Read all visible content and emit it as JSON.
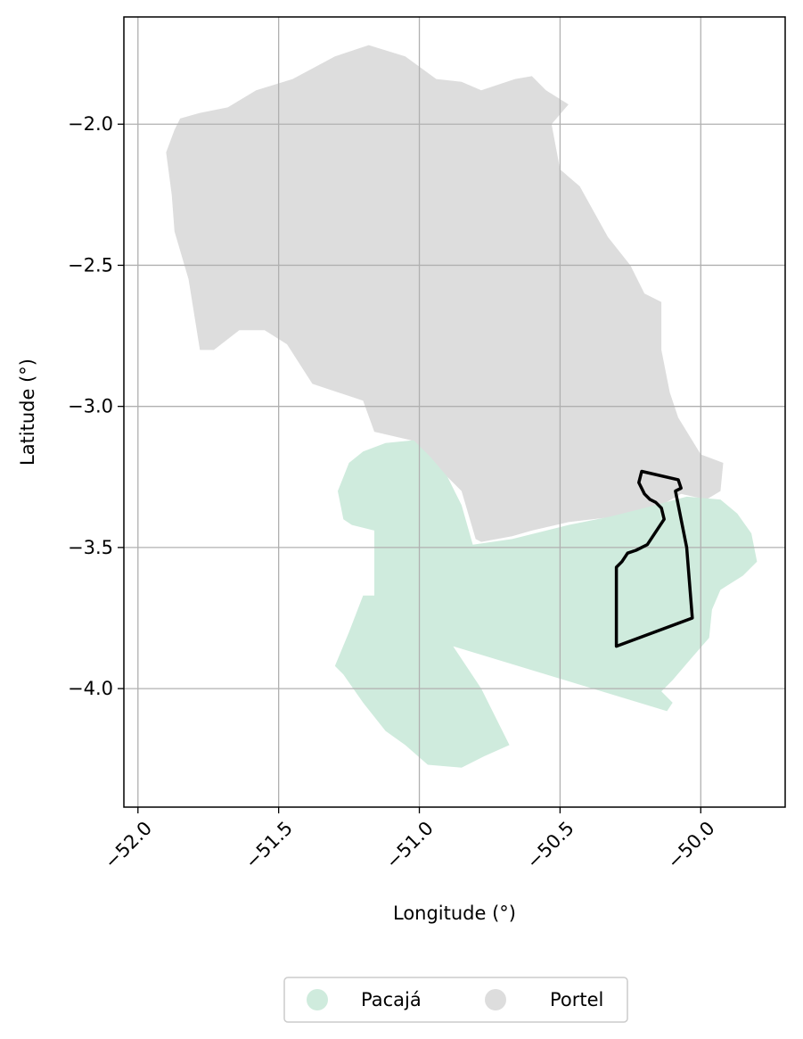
{
  "chart_data": {
    "type": "map",
    "xlabel": "Longitude (°)",
    "ylabel": "Latitude (°)",
    "xlim": [
      -52.05,
      -49.7
    ],
    "ylim": [
      -4.42,
      -1.62
    ],
    "xticks": [
      -52.0,
      -51.5,
      -51.0,
      -50.5,
      -50.0
    ],
    "xtick_labels": [
      "−52.0",
      "−51.5",
      "−51.0",
      "−50.5",
      "−50.0"
    ],
    "yticks": [
      -2.0,
      -2.5,
      -3.0,
      -3.5,
      -4.0
    ],
    "ytick_labels": [
      "−2.0",
      "−2.5",
      "−3.0",
      "−3.5",
      "−4.0"
    ],
    "grid": true,
    "legend_position": "bottom-center",
    "regions": [
      {
        "name": "Portel",
        "color": "#dddddd",
        "boundary": [
          [
            -51.85,
            -1.98
          ],
          [
            -51.78,
            -1.96
          ],
          [
            -51.68,
            -1.94
          ],
          [
            -51.58,
            -1.88
          ],
          [
            -51.45,
            -1.84
          ],
          [
            -51.3,
            -1.76
          ],
          [
            -51.18,
            -1.72
          ],
          [
            -51.05,
            -1.76
          ],
          [
            -50.94,
            -1.84
          ],
          [
            -50.85,
            -1.85
          ],
          [
            -50.78,
            -1.88
          ],
          [
            -50.66,
            -1.84
          ],
          [
            -50.6,
            -1.83
          ],
          [
            -50.55,
            -1.88
          ],
          [
            -50.47,
            -1.93
          ],
          [
            -50.53,
            -2.0
          ],
          [
            -50.5,
            -2.16
          ],
          [
            -50.43,
            -2.22
          ],
          [
            -50.33,
            -2.4
          ],
          [
            -50.25,
            -2.5
          ],
          [
            -50.2,
            -2.6
          ],
          [
            -50.14,
            -2.63
          ],
          [
            -50.14,
            -2.8
          ],
          [
            -50.11,
            -2.95
          ],
          [
            -50.08,
            -3.04
          ],
          [
            -50.0,
            -3.17
          ],
          [
            -49.92,
            -3.2
          ],
          [
            -49.93,
            -3.3
          ],
          [
            -49.98,
            -3.33
          ],
          [
            -50.07,
            -3.31
          ],
          [
            -50.14,
            -3.35
          ],
          [
            -50.3,
            -3.39
          ],
          [
            -50.47,
            -3.41
          ],
          [
            -50.6,
            -3.44
          ],
          [
            -50.67,
            -3.46
          ],
          [
            -50.78,
            -3.48
          ],
          [
            -50.8,
            -3.47
          ],
          [
            -50.85,
            -3.3
          ],
          [
            -50.95,
            -3.2
          ],
          [
            -51.03,
            -3.12
          ],
          [
            -51.16,
            -3.09
          ],
          [
            -51.2,
            -2.98
          ],
          [
            -51.38,
            -2.92
          ],
          [
            -51.47,
            -2.78
          ],
          [
            -51.55,
            -2.73
          ],
          [
            -51.64,
            -2.73
          ],
          [
            -51.73,
            -2.8
          ],
          [
            -51.78,
            -2.8
          ],
          [
            -51.82,
            -2.55
          ],
          [
            -51.87,
            -2.38
          ],
          [
            -51.88,
            -2.25
          ],
          [
            -51.9,
            -2.1
          ],
          [
            -51.87,
            -2.02
          ]
        ]
      },
      {
        "name": "Pacajá",
        "color": "#cfebdd",
        "boundary": [
          [
            -51.2,
            -3.16
          ],
          [
            -51.12,
            -3.13
          ],
          [
            -51.02,
            -3.12
          ],
          [
            -50.96,
            -3.18
          ],
          [
            -50.9,
            -3.25
          ],
          [
            -50.85,
            -3.35
          ],
          [
            -50.81,
            -3.49
          ],
          [
            -50.67,
            -3.47
          ],
          [
            -50.47,
            -3.42
          ],
          [
            -50.32,
            -3.39
          ],
          [
            -50.2,
            -3.36
          ],
          [
            -50.05,
            -3.32
          ],
          [
            -49.93,
            -3.33
          ],
          [
            -49.87,
            -3.38
          ],
          [
            -49.82,
            -3.45
          ],
          [
            -49.8,
            -3.55
          ],
          [
            -49.85,
            -3.6
          ],
          [
            -49.93,
            -3.65
          ],
          [
            -49.96,
            -3.72
          ],
          [
            -49.97,
            -3.82
          ],
          [
            -50.04,
            -3.9
          ],
          [
            -50.1,
            -3.97
          ],
          [
            -50.14,
            -4.01
          ],
          [
            -50.1,
            -4.05
          ],
          [
            -50.12,
            -4.08
          ],
          [
            -50.88,
            -3.85
          ],
          [
            -50.78,
            -4.0
          ],
          [
            -50.68,
            -4.2
          ],
          [
            -50.77,
            -4.24
          ],
          [
            -50.85,
            -4.28
          ],
          [
            -50.97,
            -4.27
          ],
          [
            -51.05,
            -4.2
          ],
          [
            -51.12,
            -4.15
          ],
          [
            -51.2,
            -4.05
          ],
          [
            -51.27,
            -3.95
          ],
          [
            -51.3,
            -3.92
          ],
          [
            -51.25,
            -3.8
          ],
          [
            -51.2,
            -3.67
          ],
          [
            -51.16,
            -3.67
          ],
          [
            -51.16,
            -3.44
          ],
          [
            -51.24,
            -3.42
          ],
          [
            -51.27,
            -3.4
          ],
          [
            -51.29,
            -3.3
          ],
          [
            -51.25,
            -3.2
          ]
        ]
      },
      {
        "name": "",
        "color": "none",
        "stroke": "#000000",
        "boundary": [
          [
            -50.21,
            -3.23
          ],
          [
            -50.08,
            -3.26
          ],
          [
            -50.07,
            -3.29
          ],
          [
            -50.09,
            -3.3
          ],
          [
            -50.05,
            -3.5
          ],
          [
            -50.03,
            -3.75
          ],
          [
            -50.3,
            -3.85
          ],
          [
            -50.3,
            -3.57
          ],
          [
            -50.28,
            -3.55
          ],
          [
            -50.26,
            -3.52
          ],
          [
            -50.23,
            -3.51
          ],
          [
            -50.19,
            -3.49
          ],
          [
            -50.17,
            -3.46
          ],
          [
            -50.15,
            -3.43
          ],
          [
            -50.13,
            -3.4
          ],
          [
            -50.14,
            -3.36
          ],
          [
            -50.16,
            -3.34
          ],
          [
            -50.18,
            -3.33
          ],
          [
            -50.2,
            -3.31
          ],
          [
            -50.22,
            -3.27
          ]
        ]
      }
    ],
    "legend": [
      {
        "label": "Pacajá",
        "color": "#cfebdd"
      },
      {
        "label": "Portel",
        "color": "#dddddd"
      }
    ]
  }
}
